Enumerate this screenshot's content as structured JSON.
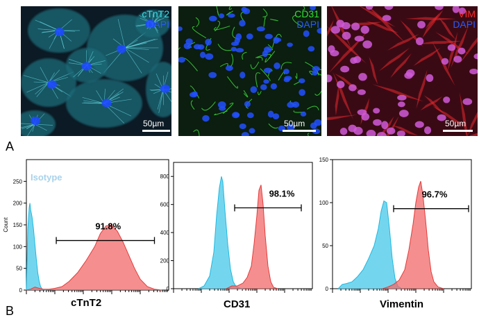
{
  "panel_labels": {
    "a": "A",
    "b": "B"
  },
  "micrographs": [
    {
      "marker": "cTnT2",
      "counter": "DAPI",
      "marker_color": "#3ee0e6",
      "counter_color": "#2a5bff",
      "scale": "50µm"
    },
    {
      "marker": "CD31",
      "counter": "DAPI",
      "marker_color": "#35e035",
      "counter_color": "#2a5bff",
      "scale": "50µm"
    },
    {
      "marker": "VIM",
      "counter": "DAPI",
      "marker_color": "#ff2a2a",
      "counter_color": "#2a5bff",
      "scale": "50µm"
    }
  ],
  "colors": {
    "isotype": "#5ccfeb",
    "stained": "#f26a6a",
    "isotype_label": "#a8d2ea"
  },
  "chart_data": [
    {
      "type": "area",
      "xlabel": "cTnT2",
      "ylabel": "Count",
      "ylim": [
        0,
        300
      ],
      "yticks": [
        0,
        50,
        100,
        150,
        200,
        250
      ],
      "legend_text": "Isotype",
      "percent_label": "91.8%",
      "gate_range": [
        0.21,
        0.9
      ],
      "series": [
        {
          "role": "isotype",
          "x": [
            0,
            0.01,
            0.02,
            0.025,
            0.03,
            0.04,
            0.05,
            0.06,
            0.07,
            0.08,
            0.09,
            0.1,
            0.11,
            0.12,
            0.14
          ],
          "y": [
            0,
            140,
            190,
            200,
            185,
            168,
            140,
            105,
            70,
            40,
            20,
            8,
            3,
            1,
            0
          ]
        },
        {
          "role": "stained",
          "x": [
            0,
            0.03,
            0.06,
            0.09,
            0.12,
            0.16,
            0.2,
            0.25,
            0.3,
            0.36,
            0.42,
            0.48,
            0.52,
            0.56,
            0.6,
            0.64,
            0.68,
            0.72,
            0.76,
            0.8,
            0.85,
            0.9,
            0.95
          ],
          "y": [
            0,
            2,
            7,
            4,
            2,
            2,
            4,
            8,
            20,
            40,
            68,
            100,
            130,
            148,
            150,
            135,
            110,
            80,
            50,
            25,
            8,
            2,
            0
          ]
        }
      ]
    },
    {
      "type": "area",
      "xlabel": "CD31",
      "ylabel": "",
      "ylim": [
        0,
        900
      ],
      "yticks": [
        0,
        200,
        400,
        600,
        800
      ],
      "percent_label": "98.1%",
      "gate_range": [
        0.44,
        0.92
      ],
      "series": [
        {
          "role": "isotype",
          "x": [
            0.18,
            0.22,
            0.26,
            0.29,
            0.31,
            0.33,
            0.345,
            0.355,
            0.37,
            0.39,
            0.41,
            0.43,
            0.45,
            0.48,
            0.5
          ],
          "y": [
            0,
            20,
            90,
            260,
            520,
            720,
            800,
            760,
            560,
            320,
            140,
            50,
            15,
            3,
            0
          ]
        },
        {
          "role": "stained",
          "x": [
            0.38,
            0.42,
            0.46,
            0.5,
            0.53,
            0.56,
            0.58,
            0.6,
            0.615,
            0.63,
            0.645,
            0.66,
            0.68,
            0.7,
            0.72,
            0.75
          ],
          "y": [
            0,
            20,
            20,
            40,
            80,
            160,
            320,
            520,
            700,
            740,
            600,
            380,
            160,
            50,
            10,
            0
          ]
        }
      ]
    },
    {
      "type": "area",
      "xlabel": "Vimentin",
      "ylabel": "",
      "ylim": [
        0,
        150
      ],
      "yticks": [
        0,
        50,
        100,
        150
      ],
      "percent_label": "96.7%",
      "gate_range": [
        0.44,
        0.98
      ],
      "series": [
        {
          "role": "isotype",
          "x": [
            0.04,
            0.07,
            0.1,
            0.14,
            0.18,
            0.22,
            0.26,
            0.3,
            0.33,
            0.35,
            0.37,
            0.39,
            0.41,
            0.43,
            0.45,
            0.47,
            0.5
          ],
          "y": [
            0,
            5,
            6,
            8,
            14,
            22,
            35,
            50,
            70,
            90,
            102,
            100,
            70,
            35,
            12,
            3,
            0
          ]
        },
        {
          "role": "stained",
          "x": [
            0.36,
            0.4,
            0.44,
            0.48,
            0.52,
            0.55,
            0.58,
            0.6,
            0.62,
            0.635,
            0.65,
            0.67,
            0.69,
            0.71,
            0.73,
            0.76,
            0.8
          ],
          "y": [
            0,
            2,
            5,
            10,
            22,
            45,
            75,
            100,
            118,
            125,
            110,
            80,
            45,
            20,
            8,
            2,
            0
          ]
        }
      ]
    }
  ]
}
